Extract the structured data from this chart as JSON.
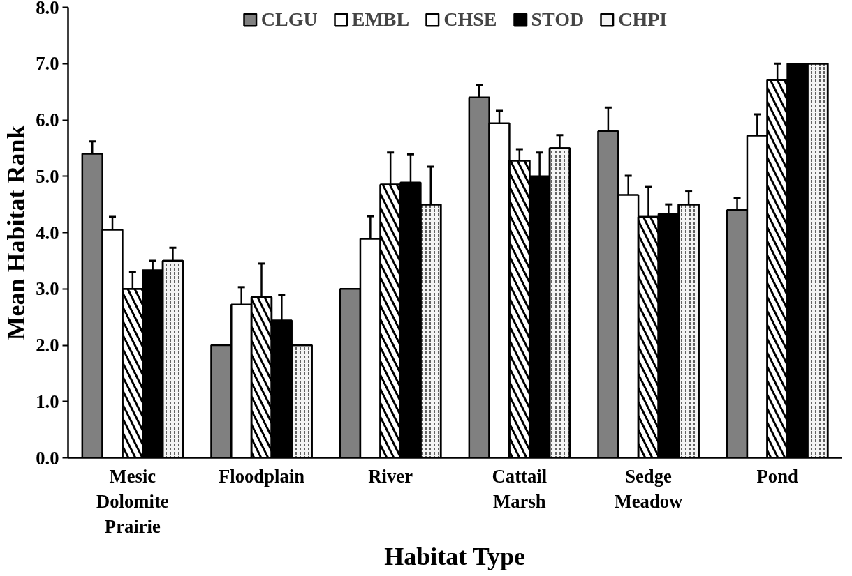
{
  "chart_data": {
    "type": "bar",
    "xlabel": "Habitat Type",
    "ylabel": "Mean Habitat Rank",
    "categories": [
      "Mesic Dolomite Prairie",
      "Floodplain",
      "River",
      "Cattail Marsh",
      "Sedge Meadow",
      "Pond"
    ],
    "series": [
      {
        "name": "CLGU",
        "color": "#808080",
        "values": [
          5.4,
          2.0,
          3.0,
          6.4,
          5.8,
          4.4
        ],
        "errors": [
          0.22,
          null,
          null,
          0.22,
          0.42,
          0.22
        ]
      },
      {
        "name": "EMBL",
        "color": "#ffffff",
        "values": [
          4.05,
          2.72,
          3.89,
          5.94,
          4.67,
          5.72
        ],
        "errors": [
          0.23,
          0.31,
          0.4,
          0.22,
          0.34,
          0.38
        ]
      },
      {
        "name": "CHSE",
        "color": "#ffffff",
        "values": [
          3.0,
          2.85,
          4.85,
          5.28,
          4.28,
          6.71
        ],
        "errors": [
          0.3,
          0.6,
          0.57,
          0.2,
          0.53,
          0.29
        ]
      },
      {
        "name": "STOD",
        "color": "#000000",
        "values": [
          3.33,
          2.44,
          4.89,
          5.0,
          4.33,
          7.0
        ],
        "errors": [
          0.17,
          0.45,
          0.5,
          0.42,
          0.17,
          null
        ]
      },
      {
        "name": "CHPI",
        "color": "#f4f4f4",
        "values": [
          3.5,
          2.0,
          4.5,
          5.5,
          4.5,
          7.0
        ],
        "errors": [
          0.23,
          null,
          0.67,
          0.23,
          0.23,
          null
        ]
      }
    ],
    "ylim": [
      0,
      8
    ],
    "yticks": [
      {
        "value": 0,
        "label": "0.0"
      },
      {
        "value": 1,
        "label": "1.0"
      },
      {
        "value": 2,
        "label": "2.0"
      },
      {
        "value": 3,
        "label": "3.0"
      },
      {
        "value": 4,
        "label": "4.0"
      },
      {
        "value": 5,
        "label": "5.0"
      },
      {
        "value": 6,
        "label": "6.0"
      },
      {
        "value": 7,
        "label": "7.0"
      },
      {
        "value": 8,
        "label": "8.0"
      }
    ],
    "grid": false,
    "legend": "top"
  }
}
